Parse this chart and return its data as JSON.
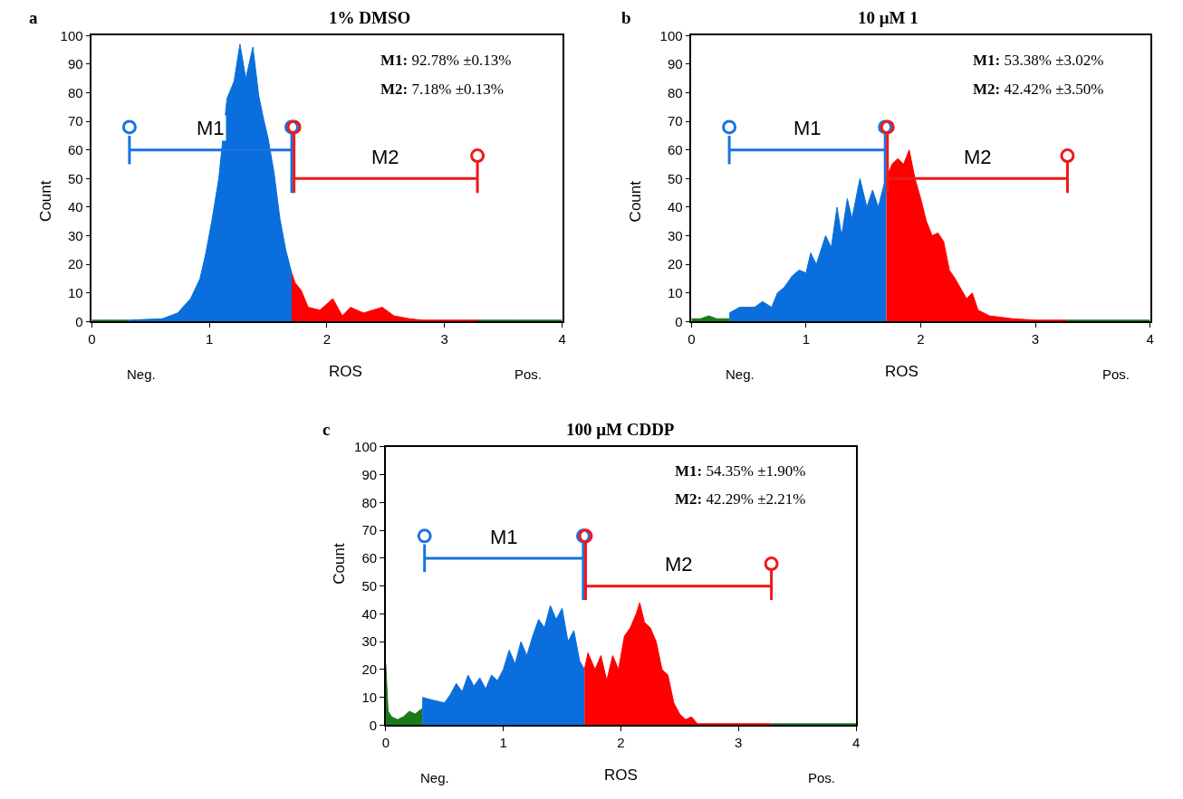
{
  "chart_data": [
    {
      "type": "area",
      "title": "1% DMSO",
      "xlabel": "ROS",
      "ylabel": "Count",
      "xlim": [
        0,
        4
      ],
      "xticks": [
        0,
        1,
        2,
        3,
        4
      ],
      "ylim": [
        0,
        100
      ],
      "yticks": [
        0,
        10,
        20,
        30,
        40,
        50,
        60,
        70,
        80,
        90,
        100
      ],
      "legend": false,
      "annotations": [
        "a",
        "M1: 92.78% ±0.13%",
        "M2: 7.18% ±0.13%",
        "Neg.",
        "Pos."
      ],
      "series": [
        {
          "color": "#1a7a1a",
          "x": [
            0,
            0.1,
            0.2,
            0.31
          ],
          "values": [
            0.5,
            0.5,
            0.5,
            0.5
          ]
        },
        {
          "color": "#0a6fdc",
          "x": [
            0.31,
            0.6,
            0.73,
            0.84,
            0.92,
            0.97,
            1.02,
            1.08,
            1.15,
            1.21,
            1.26,
            1.31,
            1.37,
            1.42,
            1.46,
            1.5,
            1.55,
            1.6,
            1.65,
            1.7
          ],
          "values": [
            0.5,
            1,
            3,
            8,
            15,
            24,
            35,
            50,
            78,
            84,
            97,
            85,
            96,
            79,
            71,
            64,
            52,
            36,
            25,
            17
          ]
        },
        {
          "color": "#ff0000",
          "x": [
            1.7,
            1.73,
            1.78,
            1.84,
            1.94,
            2.05,
            2.13,
            2.2,
            2.31,
            2.47,
            2.57,
            2.7,
            2.81,
            3.28
          ],
          "values": [
            17,
            13.5,
            11,
            5,
            4,
            8,
            2,
            5,
            3,
            5,
            2,
            1,
            0.5,
            0.5
          ]
        },
        {
          "color": "#1a7a1a",
          "x": [
            3.28,
            3.6,
            4
          ],
          "values": [
            0.5,
            0.5,
            0.5
          ]
        },
        {
          "type": "line",
          "name": "M1",
          "color": "#1a73e0",
          "x": [
            0.32,
            0.32,
            0.32,
            1.7,
            1.7,
            1.7
          ],
          "values": [
            65,
            55,
            60,
            60,
            45,
            66
          ]
        },
        {
          "type": "line",
          "name": "M2",
          "color": "#f01818",
          "x": [
            1.72,
            1.72,
            1.72,
            3.28,
            3.28,
            3.28
          ],
          "values": [
            66,
            45,
            50,
            50,
            45,
            56
          ]
        },
        {
          "type": "scatter",
          "color": "#1a73e0",
          "marker": "circle",
          "x": [
            0.32,
            1.7
          ],
          "values": [
            68,
            68
          ]
        },
        {
          "type": "scatter",
          "color": "#f01818",
          "marker": "circle",
          "x": [
            1.72,
            3.28
          ],
          "values": [
            68,
            58
          ]
        }
      ]
    },
    {
      "type": "area",
      "title": "10 μM 1",
      "xlabel": "ROS",
      "ylabel": "Count",
      "xlim": [
        0,
        4
      ],
      "xticks": [
        0,
        1,
        2,
        3,
        4
      ],
      "ylim": [
        0,
        100
      ],
      "yticks": [
        0,
        10,
        20,
        30,
        40,
        50,
        60,
        70,
        80,
        90,
        100
      ],
      "legend": false,
      "annotations": [
        "b",
        "M1: 53.38% ±3.02%",
        "M2: 42.42% ±3.50%",
        "Neg.",
        "Pos."
      ],
      "series": [
        {
          "color": "#1a7a1a",
          "x": [
            0,
            0.08,
            0.15,
            0.22,
            0.33
          ],
          "values": [
            1,
            1,
            2,
            1,
            1
          ]
        },
        {
          "color": "#0a6fdc",
          "x": [
            0.33,
            0.42,
            0.55,
            0.62,
            0.7,
            0.75,
            0.81,
            0.88,
            0.94,
            1.0,
            1.04,
            1.09,
            1.17,
            1.22,
            1.27,
            1.31,
            1.36,
            1.4,
            1.47,
            1.53,
            1.58,
            1.63,
            1.68,
            1.7
          ],
          "values": [
            3,
            5,
            5,
            7,
            5,
            10,
            12,
            16,
            18,
            17,
            24,
            20,
            30,
            26,
            40,
            30,
            43,
            36,
            50,
            40,
            46,
            40,
            48,
            50
          ]
        },
        {
          "color": "#ff0000",
          "x": [
            1.7,
            1.72,
            1.75,
            1.8,
            1.85,
            1.9,
            1.95,
            2.0,
            2.05,
            2.1,
            2.15,
            2.2,
            2.25,
            2.3,
            2.4,
            2.45,
            2.5,
            2.6,
            2.8,
            3.0,
            3.28
          ],
          "values": [
            50,
            52,
            55,
            57,
            55,
            60,
            50,
            43,
            35,
            30,
            31,
            28,
            18,
            15,
            8,
            10,
            4,
            2,
            1,
            0.5,
            0.5
          ]
        },
        {
          "color": "#1a7a1a",
          "x": [
            3.28,
            3.6,
            4
          ],
          "values": [
            0.5,
            0.5,
            0.5
          ]
        },
        {
          "type": "line",
          "name": "M1",
          "color": "#1a73e0",
          "x": [
            0.33,
            0.33,
            0.33,
            1.69,
            1.69,
            1.69
          ],
          "values": [
            65,
            55,
            60,
            60,
            45,
            66
          ]
        },
        {
          "type": "line",
          "name": "M2",
          "color": "#f01818",
          "x": [
            1.71,
            1.71,
            1.71,
            3.28,
            3.28,
            3.28
          ],
          "values": [
            66,
            45,
            50,
            50,
            45,
            56
          ]
        },
        {
          "type": "scatter",
          "color": "#1a73e0",
          "marker": "circle",
          "x": [
            0.33,
            1.69
          ],
          "values": [
            68,
            68
          ]
        },
        {
          "type": "scatter",
          "color": "#f01818",
          "marker": "circle",
          "x": [
            1.71,
            3.28
          ],
          "values": [
            68,
            58
          ]
        }
      ]
    },
    {
      "type": "area",
      "title": "100 μM CDDP",
      "xlabel": "ROS",
      "ylabel": "Count",
      "xlim": [
        0,
        4
      ],
      "xticks": [
        0,
        1,
        2,
        3,
        4
      ],
      "ylim": [
        0,
        100
      ],
      "yticks": [
        0,
        10,
        20,
        30,
        40,
        50,
        60,
        70,
        80,
        90,
        100
      ],
      "legend": false,
      "annotations": [
        "c",
        "M1: 54.35% ±1.90%",
        "M2: 42.29% ±2.21%",
        "Neg.",
        "Pos."
      ],
      "series": [
        {
          "color": "#1a7a1a",
          "x": [
            0,
            0.02,
            0.05,
            0.1,
            0.15,
            0.2,
            0.25,
            0.31
          ],
          "values": [
            22,
            5,
            3,
            2,
            3,
            5,
            4,
            6
          ]
        },
        {
          "color": "#0a6fdc",
          "x": [
            0.31,
            0.4,
            0.5,
            0.55,
            0.6,
            0.65,
            0.7,
            0.75,
            0.8,
            0.85,
            0.9,
            0.95,
            1.0,
            1.05,
            1.1,
            1.15,
            1.2,
            1.25,
            1.3,
            1.35,
            1.4,
            1.45,
            1.5,
            1.55,
            1.6,
            1.65,
            1.69
          ],
          "values": [
            10,
            9,
            8,
            11,
            15,
            12,
            18,
            14,
            17,
            13,
            18,
            16,
            20,
            27,
            22,
            30,
            25,
            32,
            38,
            35,
            43,
            38,
            42,
            30,
            34,
            23,
            20
          ]
        },
        {
          "color": "#ff0000",
          "x": [
            1.69,
            1.72,
            1.78,
            1.83,
            1.88,
            1.93,
            1.98,
            2.03,
            2.08,
            2.13,
            2.16,
            2.2,
            2.25,
            2.3,
            2.35,
            2.4,
            2.45,
            2.5,
            2.55,
            2.6,
            2.65,
            3.28
          ],
          "values": [
            20,
            26,
            20,
            25,
            16,
            25,
            20,
            32,
            35,
            40,
            44,
            37,
            35,
            30,
            20,
            18,
            8,
            4,
            2,
            3,
            0.5,
            0.5
          ]
        },
        {
          "color": "#1a7a1a",
          "x": [
            3.28,
            3.6,
            4
          ],
          "values": [
            0.5,
            0.5,
            0.5
          ]
        },
        {
          "type": "line",
          "name": "M1",
          "color": "#1a73e0",
          "x": [
            0.33,
            0.33,
            0.33,
            1.68,
            1.68,
            1.68
          ],
          "values": [
            65,
            55,
            60,
            60,
            45,
            66
          ]
        },
        {
          "type": "line",
          "name": "M2",
          "color": "#f01818",
          "x": [
            1.7,
            1.7,
            1.7,
            3.28,
            3.28,
            3.28
          ],
          "values": [
            66,
            45,
            50,
            50,
            45,
            56
          ]
        },
        {
          "type": "scatter",
          "color": "#1a73e0",
          "marker": "circle",
          "x": [
            0.33,
            1.68
          ],
          "values": [
            68,
            68
          ]
        },
        {
          "type": "scatter",
          "color": "#f01818",
          "marker": "circle",
          "x": [
            1.7,
            3.28
          ],
          "values": [
            68,
            58
          ]
        }
      ]
    }
  ]
}
